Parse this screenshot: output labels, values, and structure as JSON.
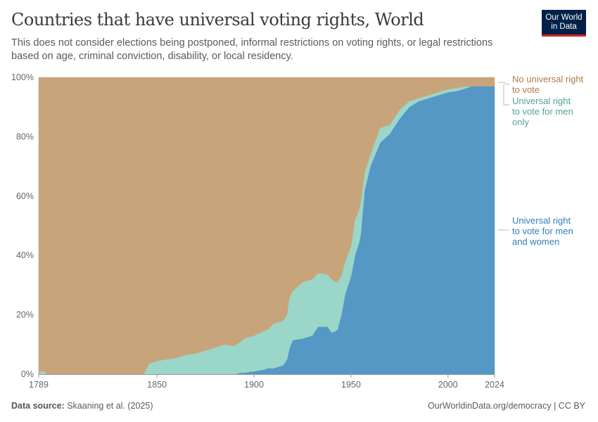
{
  "header": {
    "title": "Countries that have universal voting rights, World",
    "subtitle": "This does not consider elections being postponed, informal restrictions on voting rights, or legal restrictions based on age, criminal conviction, disability, or local residency.",
    "logo": "Our World in Data"
  },
  "footer": {
    "source_label": "Data source:",
    "source": "Skaaning et al. (2025)",
    "url": "OurWorldinData.org/democracy | CC BY"
  },
  "colors": {
    "no_right": "#c8a47b",
    "men_only": "#9ad7c8",
    "men_and_women": "#5598c6",
    "no_right_text": "#b07a45",
    "men_only_text": "#4fa593",
    "men_and_women_text": "#2f80bd"
  },
  "chart_data": {
    "type": "area",
    "stacked": true,
    "title": "Countries that have universal voting rights, World",
    "ylim": [
      0,
      100
    ],
    "xlim": [
      1789,
      2024
    ],
    "y_ticks": [
      "0%",
      "20%",
      "40%",
      "60%",
      "80%",
      "100%"
    ],
    "x_ticks": [
      "1789",
      "1850",
      "1900",
      "1950",
      "2000",
      "2024"
    ],
    "grid": "horizontal dashed",
    "legend": "right, inline labels",
    "x": [
      1789,
      1790,
      1792,
      1793,
      1843,
      1846,
      1850,
      1855,
      1860,
      1865,
      1870,
      1875,
      1880,
      1885,
      1890,
      1893,
      1895,
      1900,
      1905,
      1907,
      1910,
      1915,
      1917,
      1918,
      1919,
      1920,
      1925,
      1930,
      1933,
      1935,
      1938,
      1940,
      1942,
      1943,
      1945,
      1947,
      1950,
      1952,
      1954,
      1955,
      1957,
      1960,
      1965,
      1970,
      1975,
      1980,
      1985,
      1990,
      1995,
      2000,
      2005,
      2010,
      2012,
      2024
    ],
    "series": [
      {
        "name": "Universal right to vote for men and women",
        "key": "men_and_women",
        "values": [
          0,
          0,
          0,
          0,
          0,
          0,
          0,
          0,
          0,
          0,
          0,
          0,
          0,
          0,
          0,
          0.5,
          0.5,
          1,
          1.5,
          2,
          2,
          3,
          5,
          8,
          10,
          11.5,
          12,
          13,
          16,
          16,
          16,
          14,
          14.5,
          15,
          20,
          27,
          33,
          40,
          44,
          47,
          62,
          70,
          78,
          81,
          86,
          90,
          92,
          93,
          94,
          95,
          95.5,
          96.5,
          97,
          97
        ]
      },
      {
        "name": "Universal right to vote for men only",
        "key": "men_only",
        "values": [
          0,
          1,
          1,
          0,
          0,
          3.5,
          4.5,
          5,
          5.5,
          6.5,
          7,
          8,
          9,
          10,
          9.5,
          10.5,
          11.5,
          12,
          13,
          13,
          15,
          15,
          15,
          17,
          17,
          16.5,
          19,
          19,
          18,
          18,
          17.5,
          18,
          16.5,
          16,
          13,
          11,
          10,
          12,
          11,
          11,
          6,
          4,
          5,
          3,
          3,
          2,
          1,
          1,
          1,
          1,
          1,
          0.5,
          0,
          0
        ]
      },
      {
        "name": "No universal right to vote",
        "key": "no_right",
        "values": [
          100,
          99,
          99,
          100,
          100,
          96.5,
          95.5,
          95,
          94.5,
          93.5,
          93,
          92,
          91,
          90,
          90.5,
          89,
          88,
          87,
          85.5,
          85,
          83,
          82,
          80,
          75,
          73,
          72,
          69,
          68,
          66,
          66,
          66.5,
          68,
          69,
          69,
          67,
          62,
          57,
          48,
          45,
          42,
          32,
          26,
          17,
          16,
          11,
          8,
          7,
          6,
          5,
          4,
          3.5,
          3,
          3,
          3
        ]
      }
    ],
    "legend_labels": {
      "no_right": "No universal right to vote",
      "men_only": "Universal right to vote for men only",
      "men_and_women": "Universal right to vote for men and women"
    }
  }
}
